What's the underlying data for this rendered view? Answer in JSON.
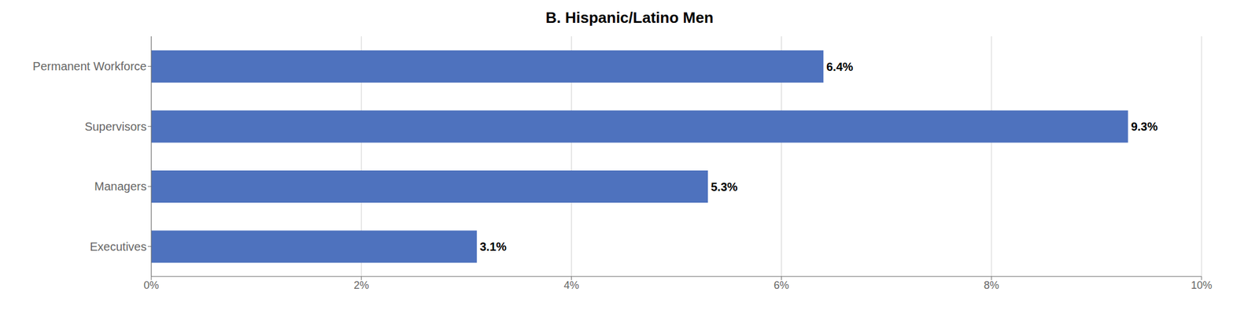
{
  "chart_data": {
    "type": "bar",
    "title": "B. Hispanic/Latino Men",
    "orientation": "horizontal",
    "categories": [
      "Permanent Workforce",
      "Supervisors",
      "Managers",
      "Executives"
    ],
    "values": [
      6.4,
      9.3,
      5.3,
      3.1
    ],
    "value_labels": [
      "6.4%",
      "9.3%",
      "5.3%",
      "3.1%"
    ],
    "data_labels": true,
    "color": "#4E72BE",
    "xlim": [
      0,
      10
    ],
    "xticks": [
      {
        "value": 0,
        "label": "0%"
      },
      {
        "value": 2,
        "label": "2%"
      },
      {
        "value": 4,
        "label": "4%"
      },
      {
        "value": 6,
        "label": "6%"
      },
      {
        "value": 8,
        "label": "8%"
      },
      {
        "value": 10,
        "label": "10%"
      }
    ],
    "grid": true
  }
}
